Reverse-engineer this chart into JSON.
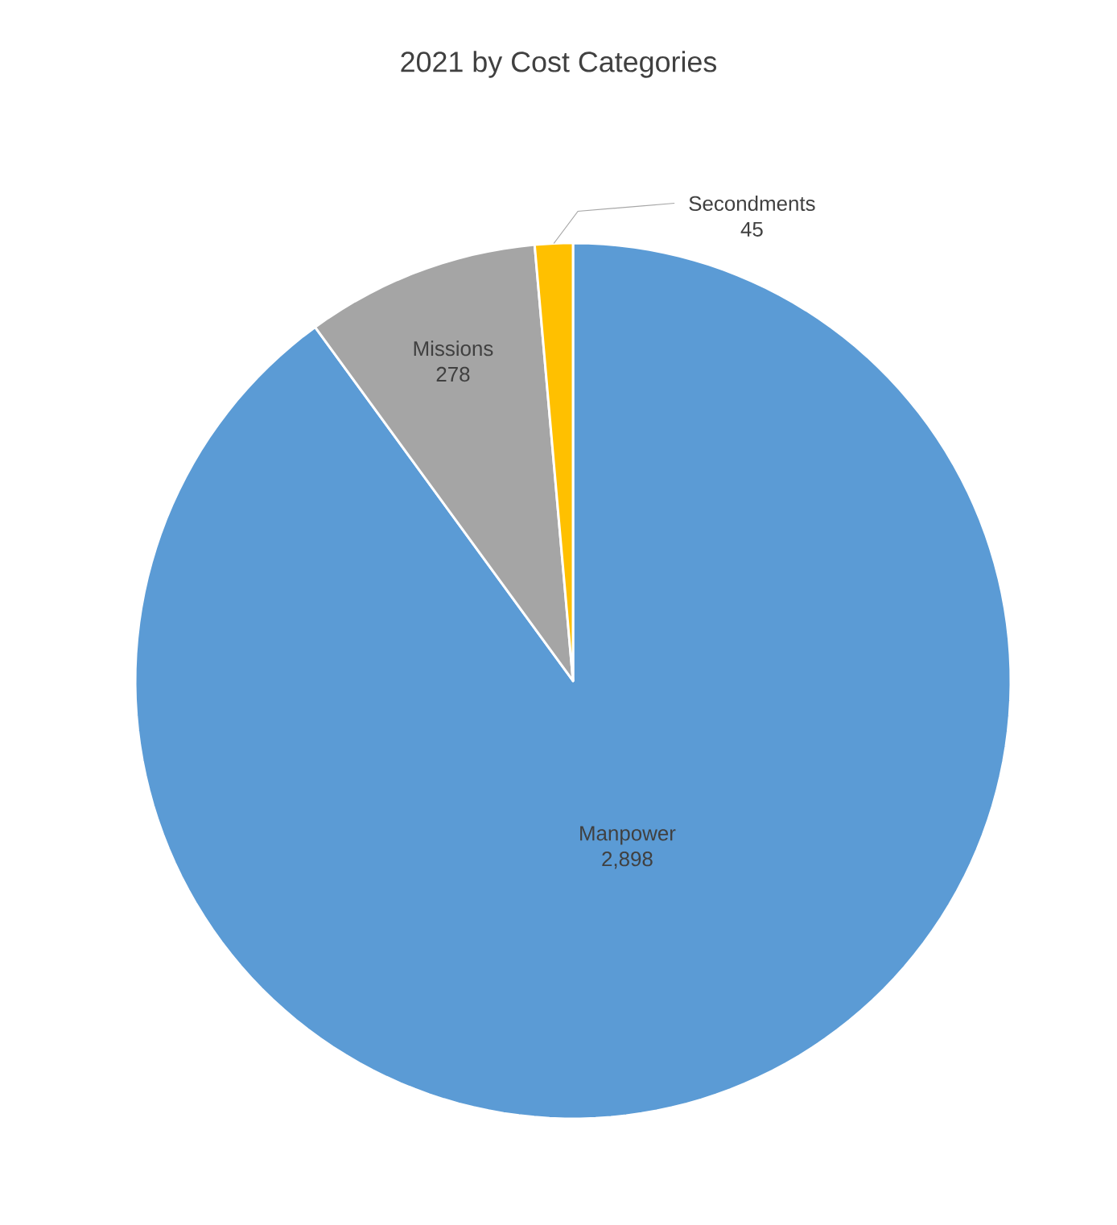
{
  "chart_data": {
    "type": "pie",
    "title": "2021 by Cost Categories",
    "categories": [
      "Manpower",
      "Missions",
      "Secondments"
    ],
    "values": [
      2898,
      278,
      45
    ],
    "value_labels": [
      "2,898",
      "278",
      "45"
    ],
    "colors": [
      "#5b9bd5",
      "#a5a5a5",
      "#ffc000"
    ]
  }
}
